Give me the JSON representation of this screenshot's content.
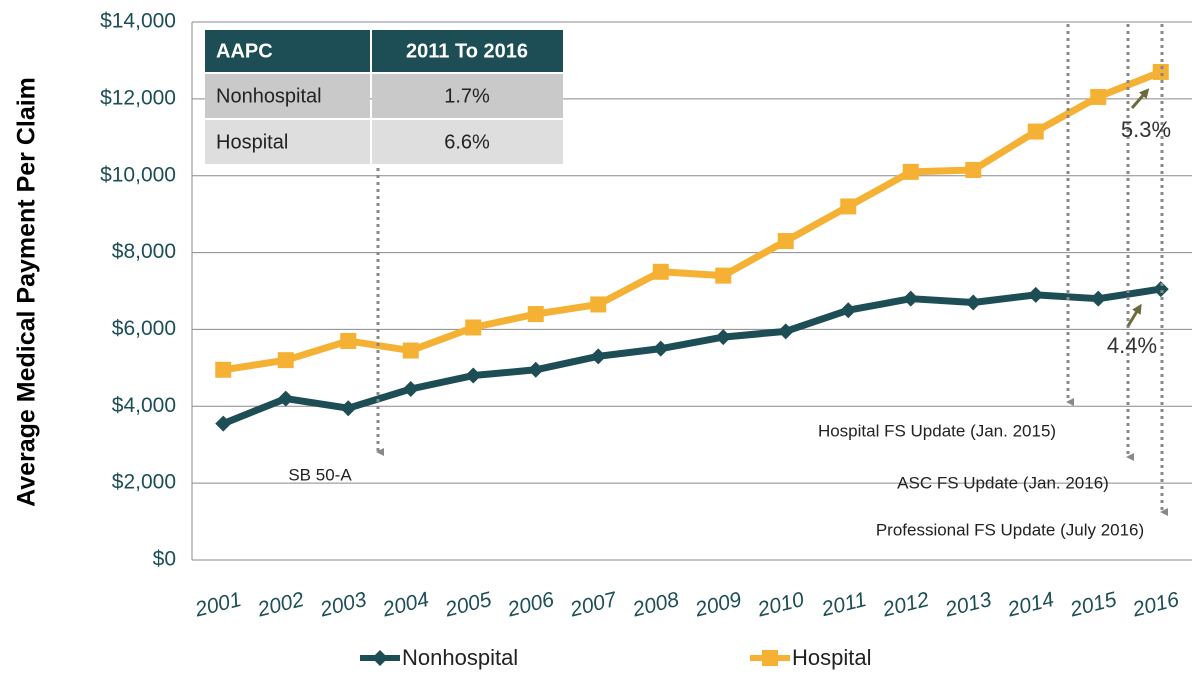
{
  "chart_data": {
    "type": "line",
    "y_label": "Average Medical Payment Per Claim",
    "categories": [
      "2001",
      "2002",
      "2003",
      "2004",
      "2005",
      "2006",
      "2007",
      "2008",
      "2009",
      "2010",
      "2011",
      "2012",
      "2013",
      "2014",
      "2015",
      "2016"
    ],
    "series": [
      {
        "name": "Nonhospital",
        "color": "#1d4e55",
        "marker": "diamond",
        "values": [
          3550,
          4200,
          3950,
          4450,
          4800,
          4950,
          5300,
          5500,
          5800,
          5950,
          6500,
          6800,
          6700,
          6900,
          6800,
          7050
        ]
      },
      {
        "name": "Hospital",
        "color": "#f5b133",
        "marker": "square",
        "values": [
          4950,
          5200,
          5700,
          5450,
          6050,
          6400,
          6650,
          7500,
          7400,
          8300,
          9200,
          10100,
          10150,
          11150,
          12050,
          12700
        ]
      }
    ],
    "ylim": [
      0,
      14000
    ],
    "yticks": [
      {
        "value": 0,
        "label": "$0"
      },
      {
        "value": 2000,
        "label": "$2,000"
      },
      {
        "value": 4000,
        "label": "$4,000"
      },
      {
        "value": 6000,
        "label": "$6,000"
      },
      {
        "value": 8000,
        "label": "$8,000"
      },
      {
        "value": 10000,
        "label": "$10,000"
      },
      {
        "value": 12000,
        "label": "$12,000"
      },
      {
        "value": 14000,
        "label": "$14,000"
      }
    ],
    "grid": true,
    "legend": "bottom",
    "table": {
      "header": [
        "AAPC",
        "2011 To 2016"
      ],
      "rows": [
        [
          "Nonhospital",
          "1.7%"
        ],
        [
          "Hospital",
          "6.6%"
        ]
      ]
    },
    "annotations": [
      "SB 50-A",
      "Hospital FS Update (Jan. 2015)",
      "ASC FS Update (Jan. 2016)",
      "Professional FS Update (July 2016)",
      "5.3%",
      "4.4%"
    ]
  }
}
